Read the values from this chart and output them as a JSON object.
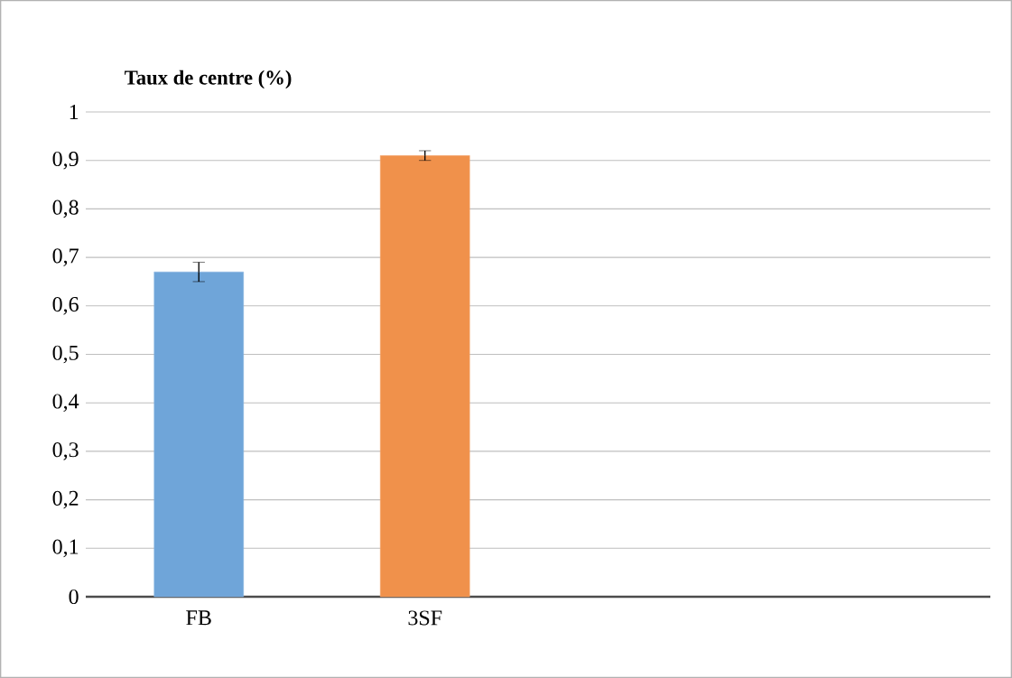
{
  "chart_data": {
    "type": "bar",
    "title": "Taux de centre (%)",
    "categories": [
      "FB",
      "3SF",
      null,
      null
    ],
    "values": [
      0.67,
      0.91,
      null,
      null
    ],
    "colors": [
      "#6fa5d9",
      "#f0914b",
      null,
      null
    ],
    "errors": [
      0.02,
      0.01,
      null,
      null
    ],
    "ylim": [
      0,
      1
    ],
    "yticks": [
      0,
      {
        "value": 0.1,
        "label": "0,1"
      },
      {
        "value": 0.2,
        "label": "0,2"
      },
      {
        "value": 0.3,
        "label": "0,3"
      },
      {
        "value": 0.4,
        "label": "0,4"
      },
      {
        "value": 0.5,
        "label": "0,5"
      },
      {
        "value": 0.6,
        "label": "0,6"
      },
      {
        "value": 0.7,
        "label": "0,7"
      },
      {
        "value": 0.8,
        "label": "0,8"
      },
      {
        "value": 0.9,
        "label": "0,9"
      },
      1
    ],
    "grid": "y"
  }
}
